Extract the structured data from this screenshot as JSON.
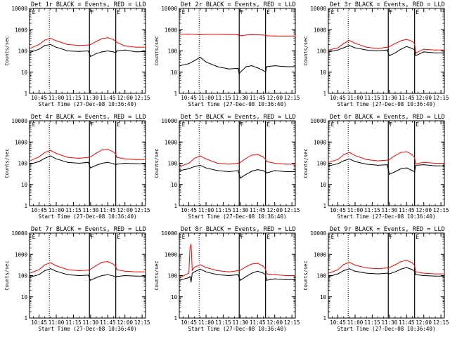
{
  "colors": {
    "events": "#000000",
    "lld": "#ff0000",
    "axis": "#000000",
    "background": "#ffffff"
  },
  "chart_data": {
    "type": "line",
    "layout": "3x3 grid of panels",
    "log_scale_y": true,
    "ylim": [
      1,
      10000
    ],
    "y_tick_labels": [
      "1",
      "10",
      "100",
      "1000",
      "10000"
    ],
    "x_tick_labels": [
      "10:45",
      "11:00",
      "11:15",
      "11:30",
      "11:45",
      "12:00",
      "12:15"
    ],
    "x_tick_minutes": [
      45,
      60,
      75,
      90,
      105,
      120,
      135
    ],
    "xlim_minutes": [
      36.67,
      138
    ],
    "markers": [
      {
        "minute": 54,
        "style": "dotted",
        "label": ""
      },
      {
        "minute": 89,
        "style": "solid",
        "label": "F"
      },
      {
        "minute": 112,
        "style": "solid",
        "label": "E"
      },
      {
        "minute": 38,
        "style": "none",
        "label": "E"
      }
    ],
    "panels": [
      {
        "title": "Det 1r BLACK = Events, RED = LLD",
        "ylabel": "Counts/sec",
        "xlabel": "Start Time (27-Dec-08 10:36:40)",
        "series": [
          {
            "name": "Events",
            "color": "black",
            "x": [
              37,
              45,
              50,
              55,
              60,
              70,
              80,
              88,
              90,
              95,
              100,
              105,
              110,
              112,
              113,
              120,
              130,
              138
            ],
            "values": [
              85,
              120,
              180,
              200,
              150,
              100,
              95,
              100,
              55,
              75,
              90,
              100,
              90,
              80,
              100,
              110,
              90,
              95
            ]
          },
          {
            "name": "LLD",
            "color": "red",
            "x": [
              37,
              45,
              50,
              55,
              60,
              70,
              80,
              88,
              90,
              95,
              100,
              105,
              110,
              112,
              113,
              120,
              130,
              138
            ],
            "values": [
              130,
              200,
              320,
              390,
              300,
              200,
              180,
              190,
              200,
              280,
              380,
              420,
              340,
              290,
              250,
              170,
              150,
              150
            ]
          }
        ]
      },
      {
        "title": "Det 2r BLACK = Events, RED = LLD",
        "ylabel": "Counts/sec",
        "xlabel": "Start Time (27-Dec-08 10:36:40)",
        "series": [
          {
            "name": "Events",
            "color": "black",
            "x": [
              37,
              45,
              50,
              55,
              60,
              70,
              80,
              88,
              89,
              90,
              95,
              100,
              105,
              110,
              112,
              113,
              120,
              130,
              138
            ],
            "values": [
              20,
              25,
              35,
              50,
              30,
              18,
              14,
              15,
              8,
              10,
              18,
              20,
              16,
              12,
              10,
              18,
              20,
              18,
              18
            ]
          },
          {
            "name": "LLD",
            "color": "red",
            "x": [
              37,
              45,
              50,
              55,
              60,
              70,
              80,
              88,
              89,
              90,
              95,
              100,
              105,
              110,
              112,
              113,
              120,
              130,
              138
            ],
            "values": [
              600,
              620,
              600,
              580,
              600,
              600,
              590,
              590,
              500,
              520,
              560,
              580,
              570,
              560,
              540,
              520,
              500,
              500,
              500
            ]
          }
        ]
      },
      {
        "title": "Det 3r BLACK = Events, RED = LLD",
        "ylabel": "Counts/sec",
        "xlabel": "Start Time (27-Dec-08 10:36:40)",
        "series": [
          {
            "name": "Events",
            "color": "black",
            "x": [
              37,
              45,
              50,
              55,
              60,
              70,
              80,
              88,
              90,
              95,
              100,
              105,
              110,
              112,
              113,
              120,
              130,
              138
            ],
            "values": [
              90,
              110,
              140,
              180,
              140,
              110,
              100,
              110,
              60,
              80,
              120,
              160,
              130,
              110,
              60,
              90,
              80,
              80
            ]
          },
          {
            "name": "LLD",
            "color": "red",
            "x": [
              37,
              45,
              50,
              55,
              60,
              70,
              80,
              88,
              90,
              95,
              100,
              105,
              110,
              112,
              113,
              120,
              130,
              138
            ],
            "values": [
              110,
              140,
              220,
              310,
              230,
              150,
              130,
              150,
              160,
              220,
              300,
              350,
              280,
              220,
              80,
              120,
              110,
              110
            ]
          }
        ]
      },
      {
        "title": "Det 4r BLACK = Events, RED = LLD",
        "ylabel": "Counts/sec",
        "xlabel": "Start Time (27-Dec-08 10:36:40)",
        "series": [
          {
            "name": "Events",
            "color": "black",
            "x": [
              37,
              45,
              50,
              55,
              60,
              70,
              80,
              88,
              90,
              95,
              100,
              105,
              110,
              112,
              113,
              120,
              130,
              138
            ],
            "values": [
              90,
              120,
              170,
              220,
              160,
              110,
              100,
              110,
              60,
              80,
              100,
              110,
              95,
              85,
              90,
              100,
              95,
              95
            ]
          },
          {
            "name": "LLD",
            "color": "red",
            "x": [
              37,
              45,
              50,
              55,
              60,
              70,
              80,
              88,
              90,
              95,
              100,
              105,
              110,
              112,
              113,
              120,
              130,
              138
            ],
            "values": [
              130,
              200,
              320,
              400,
              290,
              190,
              170,
              190,
              200,
              300,
              420,
              450,
              340,
              260,
              190,
              160,
              150,
              150
            ]
          }
        ]
      },
      {
        "title": "Det 5r BLACK = Events, RED = LLD",
        "ylabel": "Counts/sec",
        "xlabel": "Start Time (27-Dec-08 10:36:40)",
        "series": [
          {
            "name": "Events",
            "color": "black",
            "x": [
              37,
              45,
              50,
              55,
              60,
              70,
              80,
              88,
              90,
              95,
              100,
              105,
              110,
              112,
              113,
              120,
              130,
              138
            ],
            "values": [
              45,
              55,
              70,
              80,
              60,
              45,
              40,
              45,
              20,
              30,
              42,
              50,
              45,
              40,
              35,
              45,
              40,
              40
            ]
          },
          {
            "name": "LLD",
            "color": "red",
            "x": [
              37,
              45,
              50,
              55,
              60,
              70,
              80,
              88,
              90,
              95,
              100,
              105,
              110,
              112,
              113,
              120,
              130,
              138
            ],
            "values": [
              70,
              100,
              170,
              220,
              160,
              100,
              90,
              100,
              110,
              170,
              240,
              260,
              200,
              150,
              120,
              100,
              90,
              90
            ]
          }
        ]
      },
      {
        "title": "Det 6r BLACK = Events, RED = LLD",
        "ylabel": "Counts/sec",
        "xlabel": "Start Time (27-Dec-08 10:36:40)",
        "series": [
          {
            "name": "Events",
            "color": "black",
            "x": [
              37,
              45,
              50,
              55,
              60,
              70,
              80,
              88,
              90,
              95,
              100,
              105,
              110,
              112,
              113,
              120,
              130,
              138
            ],
            "values": [
              75,
              95,
              130,
              160,
              120,
              90,
              80,
              85,
              30,
              40,
              55,
              60,
              45,
              40,
              80,
              85,
              75,
              75
            ]
          },
          {
            "name": "LLD",
            "color": "red",
            "x": [
              37,
              45,
              50,
              55,
              60,
              70,
              80,
              88,
              90,
              95,
              100,
              105,
              110,
              112,
              113,
              120,
              130,
              138
            ],
            "values": [
              110,
              150,
              250,
              330,
              230,
              150,
              130,
              140,
              150,
              230,
              320,
              350,
              250,
              180,
              95,
              110,
              100,
              100
            ]
          }
        ]
      },
      {
        "title": "Det 7r BLACK = Events, RED = LLD",
        "ylabel": "Counts/sec",
        "xlabel": "Start Time (27-Dec-08 10:36:40)",
        "series": [
          {
            "name": "Events",
            "color": "black",
            "x": [
              37,
              45,
              50,
              55,
              60,
              70,
              80,
              88,
              90,
              95,
              100,
              105,
              110,
              112,
              113,
              120,
              130,
              138
            ],
            "values": [
              85,
              110,
              170,
              210,
              160,
              110,
              100,
              105,
              60,
              80,
              100,
              110,
              95,
              85,
              90,
              100,
              95,
              95
            ]
          },
          {
            "name": "LLD",
            "color": "red",
            "x": [
              37,
              45,
              50,
              55,
              60,
              70,
              80,
              88,
              90,
              95,
              100,
              105,
              110,
              112,
              113,
              120,
              130,
              138
            ],
            "values": [
              130,
              190,
              320,
              400,
              290,
              190,
              170,
              180,
              200,
              300,
              420,
              460,
              340,
              260,
              190,
              160,
              150,
              150
            ]
          }
        ]
      },
      {
        "title": "Det 8r BLACK = Events, RED = LLD",
        "ylabel": "Counts/sec",
        "xlabel": "Start Time (27-Dec-08 10:36:40)",
        "series": [
          {
            "name": "Events",
            "color": "black",
            "x": [
              37,
              45,
              46,
              47,
              48,
              50,
              55,
              60,
              70,
              80,
              88,
              90,
              95,
              100,
              105,
              110,
              112,
              113,
              120,
              130,
              138
            ],
            "values": [
              60,
              80,
              90,
              50,
              130,
              150,
              200,
              150,
              110,
              100,
              110,
              60,
              90,
              130,
              160,
              130,
              110,
              60,
              70,
              65,
              65
            ]
          },
          {
            "name": "LLD",
            "color": "red",
            "x": [
              37,
              45,
              46,
              47,
              48,
              50,
              55,
              60,
              70,
              80,
              88,
              90,
              95,
              100,
              105,
              110,
              112,
              113,
              120,
              130,
              138
            ],
            "values": [
              80,
              130,
              2000,
              3000,
              180,
              250,
              320,
              240,
              170,
              150,
              170,
              180,
              260,
              350,
              380,
              280,
              200,
              120,
              110,
              100,
              100
            ]
          }
        ]
      },
      {
        "title": "Det 9r BLACK = Events, RED = LLD",
        "ylabel": "Counts/sec",
        "xlabel": "Start Time (27-Dec-08 10:36:40)",
        "series": [
          {
            "name": "Events",
            "color": "black",
            "x": [
              37,
              45,
              50,
              55,
              60,
              70,
              80,
              88,
              90,
              95,
              100,
              105,
              110,
              112,
              113,
              120,
              130,
              138
            ],
            "values": [
              90,
              120,
              170,
              210,
              160,
              130,
              120,
              130,
              120,
              150,
              200,
              240,
              190,
              160,
              110,
              100,
              95,
              95
            ]
          },
          {
            "name": "LLD",
            "color": "red",
            "x": [
              37,
              45,
              50,
              55,
              60,
              70,
              80,
              88,
              90,
              95,
              100,
              105,
              110,
              112,
              113,
              120,
              130,
              138
            ],
            "values": [
              130,
              190,
              330,
              420,
              310,
              230,
              210,
              230,
              240,
              320,
              450,
              520,
              400,
              300,
              150,
              130,
              120,
              120
            ]
          }
        ]
      }
    ]
  }
}
